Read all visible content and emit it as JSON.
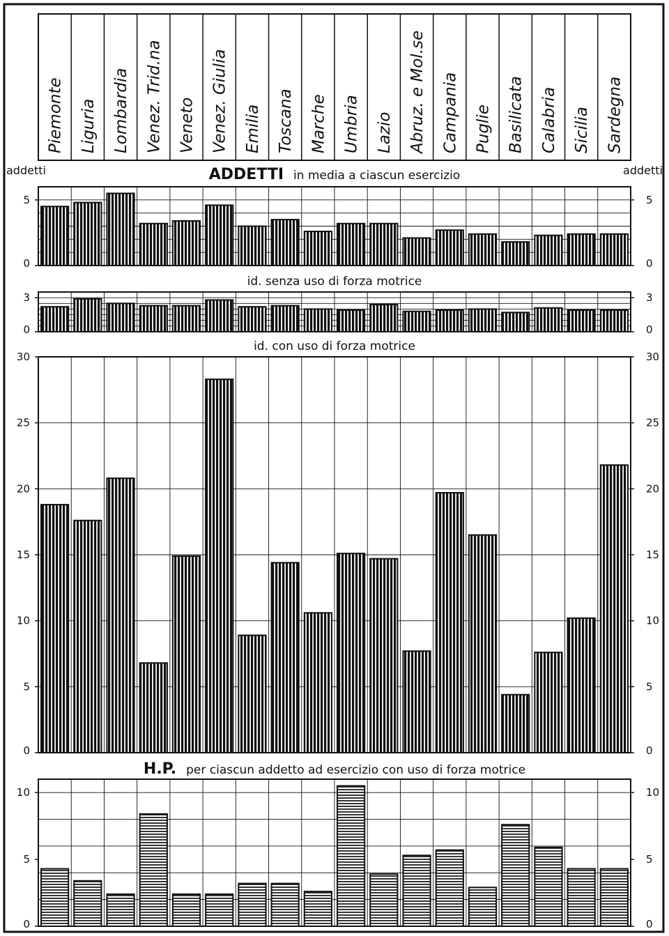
{
  "regions": [
    "Piemonte",
    "Liguria",
    "Lombardia",
    "Venez. Trid.na",
    "Veneto",
    "Venez. Giulia",
    "Emilia",
    "Toscana",
    "Marche",
    "Umbria",
    "Lazio",
    "Abruz. e Mol.se",
    "Campania",
    "Puglie",
    "Basilicata",
    "Calabria",
    "Sicilia",
    "Sardegna"
  ],
  "axis_unit_left": "addetti",
  "axis_unit_right": "addetti",
  "title_main": "ADDETTI",
  "title_main_rest": "in media a ciascun esercizio",
  "subtitle_senza": "id. senza uso di forza motrice",
  "subtitle_con": "id. con uso di forza motrice",
  "hp_title_main": "H.P.",
  "hp_title_rest": "per ciascun addetto ad esercizio con uso di forza motrice",
  "colors": {
    "ink": "#111111",
    "paper": "#ffffff"
  },
  "chart_data": [
    {
      "type": "bar",
      "title": "ADDETTI in media a ciascun esercizio",
      "ylabel": "addetti",
      "ylim": [
        0,
        6
      ],
      "yticks": [
        "0",
        "5"
      ],
      "grid": true,
      "categories": [
        "Piemonte",
        "Liguria",
        "Lombardia",
        "Venez. Trid.na",
        "Veneto",
        "Venez. Giulia",
        "Emilia",
        "Toscana",
        "Marche",
        "Umbria",
        "Lazio",
        "Abruz. e Mol.se",
        "Campania",
        "Puglie",
        "Basilicata",
        "Calabria",
        "Sicilia",
        "Sardegna"
      ],
      "values": [
        4.5,
        4.8,
        5.5,
        3.2,
        3.4,
        4.6,
        3.0,
        3.5,
        2.6,
        3.2,
        3.2,
        2.1,
        2.7,
        2.4,
        1.8,
        2.3,
        2.4,
        2.4
      ]
    },
    {
      "type": "bar",
      "title": "id. senza uso di forza motrice",
      "ylim": [
        0,
        3.5
      ],
      "yticks": [
        "0",
        "3"
      ],
      "grid": true,
      "categories": [
        "Piemonte",
        "Liguria",
        "Lombardia",
        "Venez. Trid.na",
        "Veneto",
        "Venez. Giulia",
        "Emilia",
        "Toscana",
        "Marche",
        "Umbria",
        "Lazio",
        "Abruz. e Mol.se",
        "Campania",
        "Puglie",
        "Basilicata",
        "Calabria",
        "Sicilia",
        "Sardegna"
      ],
      "values": [
        2.2,
        2.9,
        2.5,
        2.3,
        2.3,
        2.8,
        2.2,
        2.3,
        2.0,
        1.9,
        2.4,
        1.8,
        1.9,
        2.0,
        1.7,
        2.1,
        1.9,
        1.9
      ]
    },
    {
      "type": "bar",
      "title": "id. con uso di forza motrice",
      "ylim": [
        0,
        30
      ],
      "yticks": [
        "0",
        "5",
        "10",
        "15",
        "20",
        "25",
        "30"
      ],
      "grid": true,
      "categories": [
        "Piemonte",
        "Liguria",
        "Lombardia",
        "Venez. Trid.na",
        "Veneto",
        "Venez. Giulia",
        "Emilia",
        "Toscana",
        "Marche",
        "Umbria",
        "Lazio",
        "Abruz. e Mol.se",
        "Campania",
        "Puglie",
        "Basilicata",
        "Calabria",
        "Sicilia",
        "Sardegna"
      ],
      "values": [
        18.8,
        17.6,
        20.8,
        6.8,
        14.9,
        28.3,
        8.9,
        14.4,
        10.6,
        15.1,
        14.7,
        7.7,
        19.7,
        16.5,
        4.4,
        7.6,
        10.2,
        21.8
      ]
    },
    {
      "type": "bar",
      "title": "H.P. per ciascun addetto ad esercizio con uso di forza motrice",
      "ylim": [
        0,
        11
      ],
      "yticks": [
        "0",
        "5",
        "10"
      ],
      "grid": true,
      "categories": [
        "Piemonte",
        "Liguria",
        "Lombardia",
        "Venez. Trid.na",
        "Veneto",
        "Venez. Giulia",
        "Emilia",
        "Toscana",
        "Marche",
        "Umbria",
        "Lazio",
        "Abruz. e Mol.se",
        "Campania",
        "Puglie",
        "Basilicata",
        "Calabria",
        "Sicilia",
        "Sardegna"
      ],
      "values": [
        4.3,
        3.4,
        2.4,
        8.4,
        2.4,
        2.4,
        3.2,
        3.2,
        2.6,
        10.5,
        3.9,
        5.3,
        5.7,
        2.9,
        7.6,
        5.9,
        4.3,
        4.3
      ]
    }
  ]
}
